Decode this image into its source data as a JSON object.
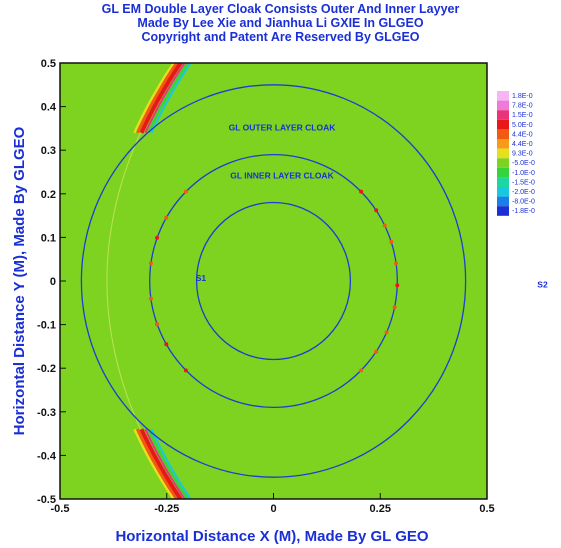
{
  "title": {
    "line1": "GL EM Double Layer Cloak Consists Outer And Inner Layyer",
    "line2": "Made By Lee Xie and Jianhua Li GXIE In GLGEO",
    "line3": "Copyright and Patent Are Reserved By GLGEO"
  },
  "colors": {
    "background_field": "#7ed321",
    "circle_line": "#1c3fd0",
    "text_blue": "#1a2fd6",
    "frame": "#111111"
  },
  "chart_data": {
    "type": "heatmap",
    "title": "GL EM Double Layer Cloak Consists Outer And Inner Layyer",
    "xlabel": "Horizontal Distance X (M), Made By GL GEO",
    "ylabel": "Horizontal Distance Y (M), Made By GLGEO",
    "xlim": [
      -0.5,
      0.5
    ],
    "ylim": [
      -0.5,
      0.5
    ],
    "x_ticks": [
      {
        "value": -0.5,
        "label": "-0.5"
      },
      {
        "value": -0.25,
        "label": "-0.25"
      },
      {
        "value": 0,
        "label": "0"
      },
      {
        "value": 0.25,
        "label": "0.25"
      },
      {
        "value": 0.5,
        "label": "0.5"
      }
    ],
    "y_ticks": [
      {
        "value": 0.5,
        "label": "0.5"
      },
      {
        "value": 0.4,
        "label": "0.4"
      },
      {
        "value": 0.3,
        "label": "0.3"
      },
      {
        "value": 0.2,
        "label": "0.2"
      },
      {
        "value": 0.1,
        "label": "0.1"
      },
      {
        "value": 0,
        "label": "0"
      },
      {
        "value": -0.1,
        "label": "-0.1"
      },
      {
        "value": -0.2,
        "label": "-0.2"
      },
      {
        "value": -0.3,
        "label": "-0.3"
      },
      {
        "value": -0.4,
        "label": "-0.4"
      },
      {
        "value": -0.5,
        "label": "-0.5"
      }
    ],
    "circles": [
      {
        "name": "outer",
        "radius": 0.45
      },
      {
        "name": "middle",
        "radius": 0.29
      },
      {
        "name": "inner",
        "radius": 0.18
      }
    ],
    "annotations": [
      {
        "text": "GL OUTER  LAYER CLOAK",
        "x": 0.02,
        "y": 0.345
      },
      {
        "text": "GL INNER LAYER CLOAK",
        "x": 0.02,
        "y": 0.235
      },
      {
        "text": "S1",
        "x": -0.17,
        "y": 0.0
      },
      {
        "text": "S2",
        "x": 0.63,
        "y": -0.015
      }
    ],
    "wave_band": {
      "x_at_top": -0.22,
      "x_at_y0": -0.39,
      "x_at_bottom": -0.22,
      "y_range_visible": [
        [
          0.34,
          0.5
        ],
        [
          -0.5,
          -0.34
        ]
      ]
    },
    "legend": {
      "placement": "right",
      "entries": [
        {
          "label": "1.8E-0",
          "color": "#f7b6f3"
        },
        {
          "label": "7.8E-0",
          "color": "#f07ad8"
        },
        {
          "label": "1.5E-0",
          "color": "#e8357a"
        },
        {
          "label": "5.0E-0",
          "color": "#e81818"
        },
        {
          "label": "4.4E-0",
          "color": "#f25a12"
        },
        {
          "label": "4.4E-0",
          "color": "#f79a1a"
        },
        {
          "label": "9.3E-0",
          "color": "#e6e01c"
        },
        {
          "label": "-5.0E-0",
          "color": "#7ed321"
        },
        {
          "label": "-1.0E-0",
          "color": "#36d43c"
        },
        {
          "label": "-1.5E-0",
          "color": "#1cd6a4"
        },
        {
          "label": "-2.0E-0",
          "color": "#18c8e0"
        },
        {
          "label": "-8.0E-0",
          "color": "#1a7fe8"
        },
        {
          "label": "-1.8E-0",
          "color": "#1a2fd6"
        }
      ]
    }
  }
}
